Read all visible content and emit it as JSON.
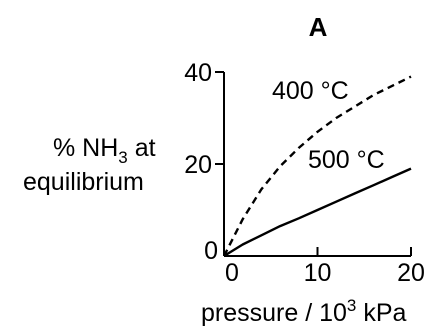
{
  "chart_data": {
    "type": "line",
    "title": "A",
    "xlabel": "pressure / 10³ kPa",
    "xlabel_parts": {
      "main": "pressure / 10",
      "sup": "3",
      "unit": " kPa"
    },
    "ylabel_line1": {
      "main": "% NH",
      "sub": "3",
      "tail": " at"
    },
    "ylabel_line2": "equilibrium",
    "xlim": [
      0,
      20
    ],
    "ylim": [
      0,
      40
    ],
    "x_ticks": [
      0,
      10,
      20
    ],
    "y_ticks": [
      0,
      20,
      40
    ],
    "x_tick_labels": [
      "0",
      "10",
      "20"
    ],
    "y_tick_labels": [
      "0",
      "20",
      "40"
    ],
    "grid": false,
    "series": [
      {
        "name": "400 °C",
        "style": "dashed",
        "x": [
          0,
          2,
          4,
          6,
          8,
          10,
          12,
          14,
          16,
          18,
          20
        ],
        "y": [
          0,
          8,
          14.5,
          19.5,
          23.5,
          27,
          30,
          32.5,
          35,
          37,
          39
        ]
      },
      {
        "name": "500 °C",
        "style": "solid",
        "x": [
          0,
          2,
          4,
          6,
          8,
          10,
          12,
          14,
          16,
          18,
          20
        ],
        "y": [
          0,
          2.5,
          4.5,
          6.5,
          8.2,
          10,
          11.8,
          13.6,
          15.4,
          17.2,
          19
        ]
      }
    ],
    "annotations": [
      "400 °C",
      "500 °C"
    ]
  }
}
